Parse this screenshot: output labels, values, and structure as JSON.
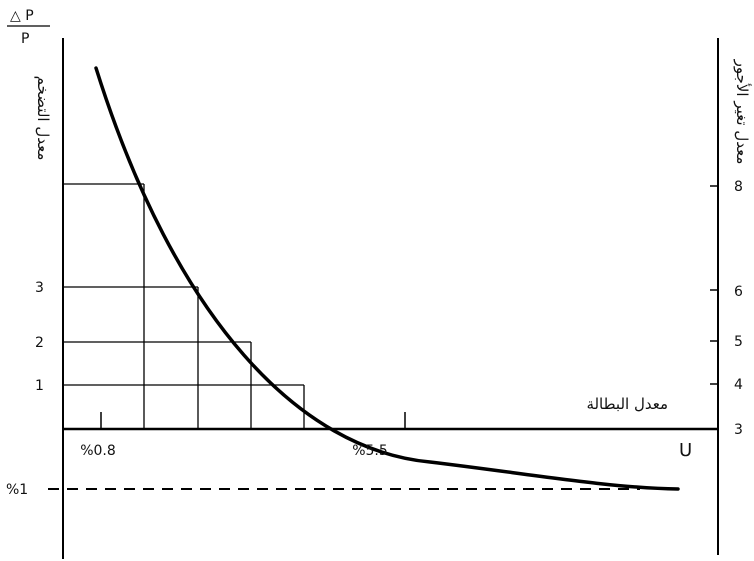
{
  "left_axis": {
    "symbol_top": "△ P",
    "symbol_bottom": "P",
    "title": "معدل التضخم",
    "ticks": [
      "3",
      "2",
      "1"
    ]
  },
  "right_axis": {
    "title": "معدل تغير الأجور",
    "ticks": [
      "8",
      "6",
      "5",
      "4",
      "3"
    ]
  },
  "x_axis": {
    "title": "معدل البطالة",
    "symbol": "U",
    "ticks": [
      "%0.8",
      "%5.5"
    ]
  },
  "neg_marker": "%1",
  "colors": {
    "ink": "#000000"
  }
}
